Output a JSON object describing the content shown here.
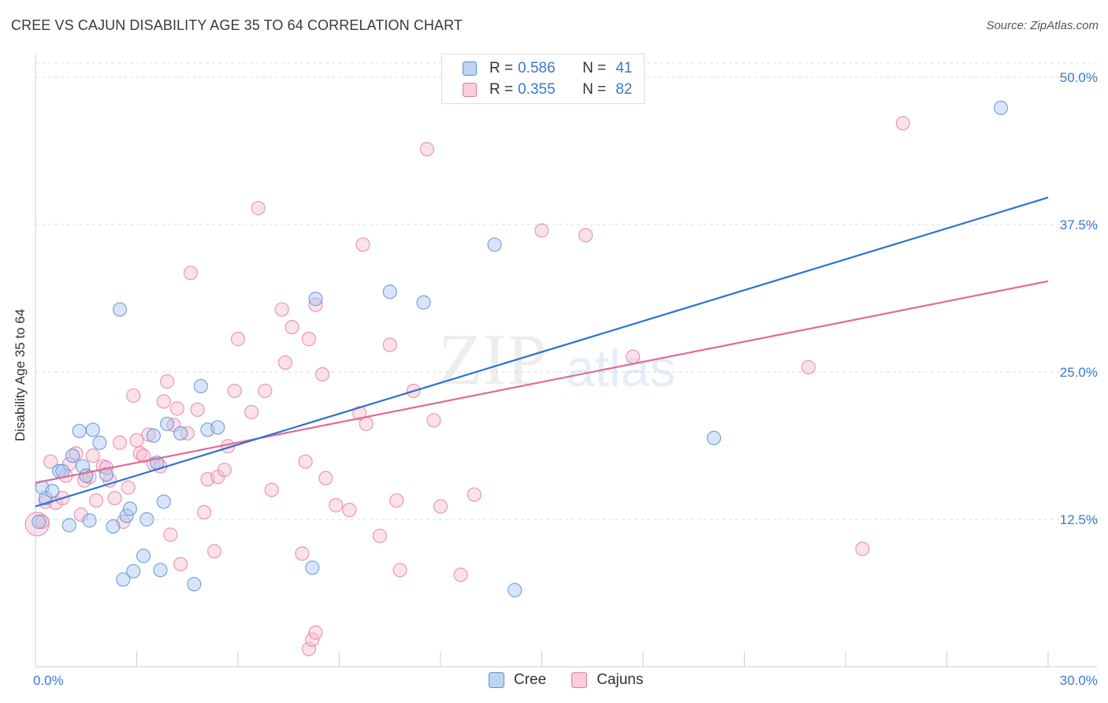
{
  "header": {
    "title": "CREE VS CAJUN DISABILITY AGE 35 TO 64 CORRELATION CHART",
    "source": "Source: ZipAtlas.com"
  },
  "watermark": {
    "part1": "ZIP",
    "part2": "atlas"
  },
  "legend": {
    "rows": [
      {
        "r_label": "R =",
        "r_value": "0.586",
        "n_label": "N =",
        "n_value": "41"
      },
      {
        "r_label": "R =",
        "r_value": "0.355",
        "n_label": "N =",
        "n_value": "82"
      }
    ]
  },
  "bottom_legend": {
    "cree": "Cree",
    "cajuns": "Cajuns"
  },
  "colors": {
    "cree": "#5b8fd6",
    "cree_fill": "#a8c6ef",
    "cajun": "#e07ba0",
    "cajun_fill": "#f6bcd0",
    "cree_line": "#2f72d0",
    "cajun_line": "#e06b98",
    "tick_label": "#3a78d0"
  },
  "chart_data": {
    "type": "scatter",
    "title": "CREE VS CAJUN DISABILITY AGE 35 TO 64 CORRELATION CHART",
    "xlabel": "",
    "ylabel": "Disability Age 35 to 64",
    "xlim": [
      0,
      30
    ],
    "ylim": [
      0,
      50
    ],
    "x_tick_labels": [
      {
        "value": 0,
        "label": "0.0%"
      },
      {
        "value": 30,
        "label": "30.0%"
      }
    ],
    "y_tick_labels": [
      {
        "value": 12.5,
        "label": "12.5%"
      },
      {
        "value": 25,
        "label": "25.0%"
      },
      {
        "value": 37.5,
        "label": "37.5%"
      },
      {
        "value": 50,
        "label": "50.0%"
      }
    ],
    "grid": true,
    "legend_position": "top-center",
    "series": [
      {
        "name": "Cree",
        "r": 0.586,
        "n": 41,
        "trend": [
          [
            0,
            13.6
          ],
          [
            30,
            39.8
          ]
        ],
        "points": [
          [
            0.1,
            12.3
          ],
          [
            0.2,
            15.2
          ],
          [
            0.3,
            14.3
          ],
          [
            0.5,
            14.9
          ],
          [
            0.7,
            16.6
          ],
          [
            0.8,
            16.6
          ],
          [
            1.0,
            12.0
          ],
          [
            1.1,
            17.9
          ],
          [
            1.3,
            20.0
          ],
          [
            1.4,
            17.0
          ],
          [
            1.5,
            16.2
          ],
          [
            1.6,
            12.4
          ],
          [
            1.7,
            20.1
          ],
          [
            1.9,
            19.0
          ],
          [
            2.1,
            16.3
          ],
          [
            2.3,
            11.9
          ],
          [
            2.5,
            30.3
          ],
          [
            2.6,
            7.4
          ],
          [
            2.7,
            12.8
          ],
          [
            2.8,
            13.4
          ],
          [
            2.9,
            8.1
          ],
          [
            3.2,
            9.4
          ],
          [
            3.3,
            12.5
          ],
          [
            3.5,
            19.6
          ],
          [
            3.6,
            17.3
          ],
          [
            3.7,
            8.2
          ],
          [
            3.8,
            14.0
          ],
          [
            3.9,
            20.6
          ],
          [
            4.3,
            19.8
          ],
          [
            4.7,
            7.0
          ],
          [
            4.9,
            23.8
          ],
          [
            5.1,
            20.1
          ],
          [
            5.4,
            20.3
          ],
          [
            8.2,
            8.4
          ],
          [
            8.3,
            31.2
          ],
          [
            10.5,
            31.8
          ],
          [
            11.5,
            30.9
          ],
          [
            13.6,
            35.8
          ],
          [
            14.2,
            6.5
          ],
          [
            20.1,
            19.4
          ],
          [
            28.6,
            47.4
          ]
        ]
      },
      {
        "name": "Cajuns",
        "r": 0.355,
        "n": 82,
        "trend": [
          [
            0,
            15.6
          ],
          [
            30,
            32.7
          ]
        ],
        "points": [
          [
            0.05,
            12.1
          ],
          [
            0.2,
            12.3
          ],
          [
            0.3,
            14.0
          ],
          [
            0.45,
            17.4
          ],
          [
            0.6,
            13.9
          ],
          [
            0.8,
            14.3
          ],
          [
            0.9,
            16.2
          ],
          [
            1.0,
            17.2
          ],
          [
            1.2,
            18.1
          ],
          [
            1.35,
            12.9
          ],
          [
            1.45,
            15.8
          ],
          [
            1.6,
            16.1
          ],
          [
            1.7,
            17.9
          ],
          [
            1.8,
            14.1
          ],
          [
            2.0,
            17.0
          ],
          [
            2.1,
            16.9
          ],
          [
            2.2,
            15.8
          ],
          [
            2.35,
            14.3
          ],
          [
            2.5,
            19.0
          ],
          [
            2.6,
            12.3
          ],
          [
            2.75,
            15.2
          ],
          [
            2.9,
            23.0
          ],
          [
            3.0,
            19.2
          ],
          [
            3.1,
            18.1
          ],
          [
            3.2,
            17.9
          ],
          [
            3.35,
            19.7
          ],
          [
            3.5,
            17.2
          ],
          [
            3.7,
            17.0
          ],
          [
            3.8,
            22.5
          ],
          [
            3.9,
            24.2
          ],
          [
            4.0,
            11.2
          ],
          [
            4.1,
            20.5
          ],
          [
            4.2,
            21.9
          ],
          [
            4.3,
            8.7
          ],
          [
            4.5,
            19.8
          ],
          [
            4.6,
            33.4
          ],
          [
            4.8,
            21.8
          ],
          [
            5.0,
            13.1
          ],
          [
            5.1,
            15.9
          ],
          [
            5.3,
            9.8
          ],
          [
            5.4,
            16.1
          ],
          [
            5.6,
            16.7
          ],
          [
            5.7,
            18.7
          ],
          [
            5.9,
            23.4
          ],
          [
            6.0,
            27.8
          ],
          [
            6.4,
            21.6
          ],
          [
            6.6,
            38.9
          ],
          [
            6.8,
            23.4
          ],
          [
            7.0,
            15.0
          ],
          [
            7.3,
            30.3
          ],
          [
            7.4,
            25.8
          ],
          [
            7.6,
            28.8
          ],
          [
            7.9,
            9.6
          ],
          [
            8.0,
            17.4
          ],
          [
            8.1,
            27.8
          ],
          [
            8.3,
            30.7
          ],
          [
            8.5,
            24.8
          ],
          [
            8.6,
            16.0
          ],
          [
            8.9,
            13.7
          ],
          [
            9.3,
            13.3
          ],
          [
            9.6,
            21.5
          ],
          [
            9.7,
            35.8
          ],
          [
            9.8,
            20.6
          ],
          [
            10.2,
            11.1
          ],
          [
            10.5,
            27.3
          ],
          [
            10.7,
            14.1
          ],
          [
            10.8,
            8.2
          ],
          [
            11.2,
            23.4
          ],
          [
            11.6,
            43.9
          ],
          [
            11.8,
            20.9
          ],
          [
            12.0,
            13.6
          ],
          [
            12.6,
            7.8
          ],
          [
            13.0,
            14.6
          ],
          [
            15.0,
            37.0
          ],
          [
            16.3,
            36.6
          ],
          [
            17.7,
            26.3
          ],
          [
            22.9,
            25.4
          ],
          [
            24.5,
            10.0
          ],
          [
            25.7,
            46.1
          ],
          [
            8.1,
            1.5
          ],
          [
            8.2,
            2.3
          ],
          [
            8.3,
            2.9
          ]
        ]
      }
    ]
  }
}
